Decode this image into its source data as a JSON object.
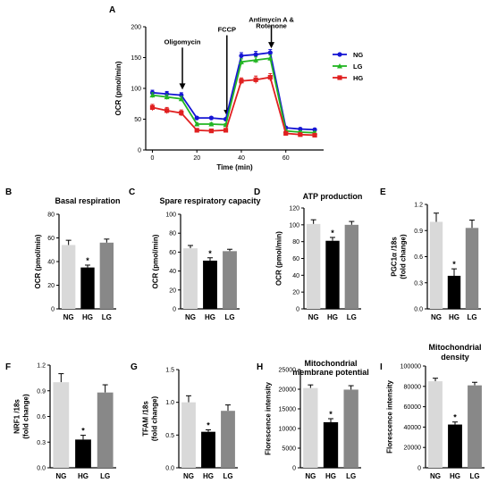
{
  "chart_data": [
    {
      "panel": "A",
      "type": "line",
      "xlabel": "Time (min)",
      "ylabel": "OCR (pmol/min)",
      "xlim": [
        -3,
        77
      ],
      "ylim": [
        0,
        200
      ],
      "xticks": [
        0,
        20,
        40,
        60
      ],
      "yticks": [
        0,
        50,
        100,
        150,
        200
      ],
      "legend_position": "right",
      "annotations": [
        {
          "text": "Oligomycin",
          "x": 13.5,
          "y": 98,
          "text_y": 172
        },
        {
          "text": "FCCP",
          "x": 33.5,
          "y": 55,
          "text_y": 192
        },
        {
          "text": "Antimycin A &",
          "x": 53.5,
          "y": 165,
          "text_y": 208
        },
        {
          "text": "Rotenone",
          "x": 53.5,
          "y": 165,
          "text_y": 198
        }
      ],
      "x": [
        0,
        6.5,
        13,
        20,
        26.5,
        33,
        40,
        46.5,
        53,
        60,
        66.5,
        73
      ],
      "series": [
        {
          "name": "NG",
          "color": "#1616d4",
          "values": [
            93,
            91,
            89,
            52,
            52,
            50,
            153,
            155,
            158,
            36,
            34,
            33
          ],
          "errors": [
            4,
            4,
            4,
            2,
            2,
            2,
            5,
            5,
            5,
            2,
            2,
            2
          ]
        },
        {
          "name": "LG",
          "color": "#22b522",
          "values": [
            89,
            86,
            83,
            42,
            42,
            41,
            143,
            146,
            149,
            31,
            29,
            28
          ],
          "errors": [
            4,
            4,
            4,
            2,
            2,
            2,
            5,
            5,
            5,
            2,
            2,
            2
          ]
        },
        {
          "name": "HG",
          "color": "#e02020",
          "values": [
            69,
            64,
            60,
            32,
            31,
            32,
            112,
            114,
            118,
            27,
            25,
            24
          ],
          "errors": [
            5,
            5,
            5,
            2,
            2,
            2,
            5,
            6,
            6,
            2,
            2,
            2
          ]
        }
      ]
    },
    {
      "panel": "B",
      "type": "bar",
      "title": "Basal respiration",
      "ylabel": "OCR (pmol/min)",
      "categories": [
        "NG",
        "HG",
        "LG"
      ],
      "values": [
        54,
        35,
        56
      ],
      "errors": [
        4,
        2,
        3
      ],
      "significant": [
        false,
        true,
        false
      ],
      "ylim": [
        0,
        80
      ],
      "yticks": [
        0,
        20,
        40,
        60,
        80
      ]
    },
    {
      "panel": "C",
      "type": "bar",
      "title": "Spare respiratory capacity",
      "ylabel": "OCR (pmol/min)",
      "categories": [
        "NG",
        "HG",
        "LG"
      ],
      "values": [
        64,
        51,
        61
      ],
      "errors": [
        3,
        3,
        2
      ],
      "significant": [
        false,
        true,
        false
      ],
      "ylim": [
        0,
        100
      ],
      "yticks": [
        0,
        20,
        40,
        60,
        80,
        100
      ]
    },
    {
      "panel": "D",
      "type": "bar",
      "title": "ATP production",
      "ylabel": "OCR (pmol/min)",
      "categories": [
        "NG",
        "HG",
        "LG"
      ],
      "values": [
        101,
        81,
        100
      ],
      "errors": [
        5,
        4,
        4
      ],
      "significant": [
        false,
        true,
        false
      ],
      "ylim": [
        0,
        120
      ],
      "yticks": [
        0,
        20,
        40,
        60,
        80,
        100,
        120
      ]
    },
    {
      "panel": "E",
      "type": "bar",
      "ylabel": "PGC1α /18s",
      "ylabel2": "(fold change)",
      "categories": [
        "NG",
        "HG",
        "LG"
      ],
      "values": [
        1.0,
        0.38,
        0.93
      ],
      "errors": [
        0.1,
        0.08,
        0.09
      ],
      "significant": [
        false,
        true,
        false
      ],
      "ylim": [
        0,
        1.2
      ],
      "yticks": [
        "0.0",
        "0.3",
        "0.6",
        "0.9",
        "1.2"
      ]
    },
    {
      "panel": "F",
      "type": "bar",
      "ylabel": "NRF1 /18s",
      "ylabel2": "(fold change)",
      "categories": [
        "NG",
        "HG",
        "LG"
      ],
      "values": [
        1.0,
        0.33,
        0.88
      ],
      "errors": [
        0.1,
        0.05,
        0.09
      ],
      "significant": [
        false,
        true,
        false
      ],
      "ylim": [
        0,
        1.2
      ],
      "yticks": [
        "0.0",
        "0.3",
        "0.6",
        "0.9",
        "1.2"
      ]
    },
    {
      "panel": "G",
      "type": "bar",
      "ylabel": "TFAM /18s",
      "ylabel2": "(fold change)",
      "categories": [
        "NG",
        "HG",
        "LG"
      ],
      "values": [
        1.0,
        0.55,
        0.87
      ],
      "errors": [
        0.1,
        0.03,
        0.09
      ],
      "significant": [
        false,
        true,
        false
      ],
      "ylim": [
        0,
        1.5
      ],
      "yticks": [
        "0.0",
        "0.5",
        "1.0",
        "1.5"
      ]
    },
    {
      "panel": "H",
      "type": "bar",
      "title": "Mitochondrial",
      "title2": "membrane potential",
      "ylabel": "Florescence intensity",
      "categories": [
        "NG",
        "HG",
        "LG"
      ],
      "values": [
        20300,
        11600,
        19900
      ],
      "errors": [
        800,
        900,
        1000
      ],
      "significant": [
        false,
        true,
        false
      ],
      "ylim": [
        0,
        25000
      ],
      "yticks": [
        0,
        5000,
        10000,
        15000,
        20000,
        25000
      ]
    },
    {
      "panel": "I",
      "type": "bar",
      "title": "Mitochondrial",
      "title2": "density",
      "ylabel": "Florescence intensity",
      "categories": [
        "NG",
        "HG",
        "LG"
      ],
      "values": [
        85000,
        42500,
        81000
      ],
      "errors": [
        3000,
        2500,
        3000
      ],
      "significant": [
        false,
        true,
        false
      ],
      "ylim": [
        0,
        100000
      ],
      "yticks": [
        0,
        20000,
        40000,
        60000,
        80000,
        100000
      ]
    }
  ],
  "bar_colors": [
    "#d9d9d9",
    "#000000",
    "#888888"
  ],
  "star": "*"
}
